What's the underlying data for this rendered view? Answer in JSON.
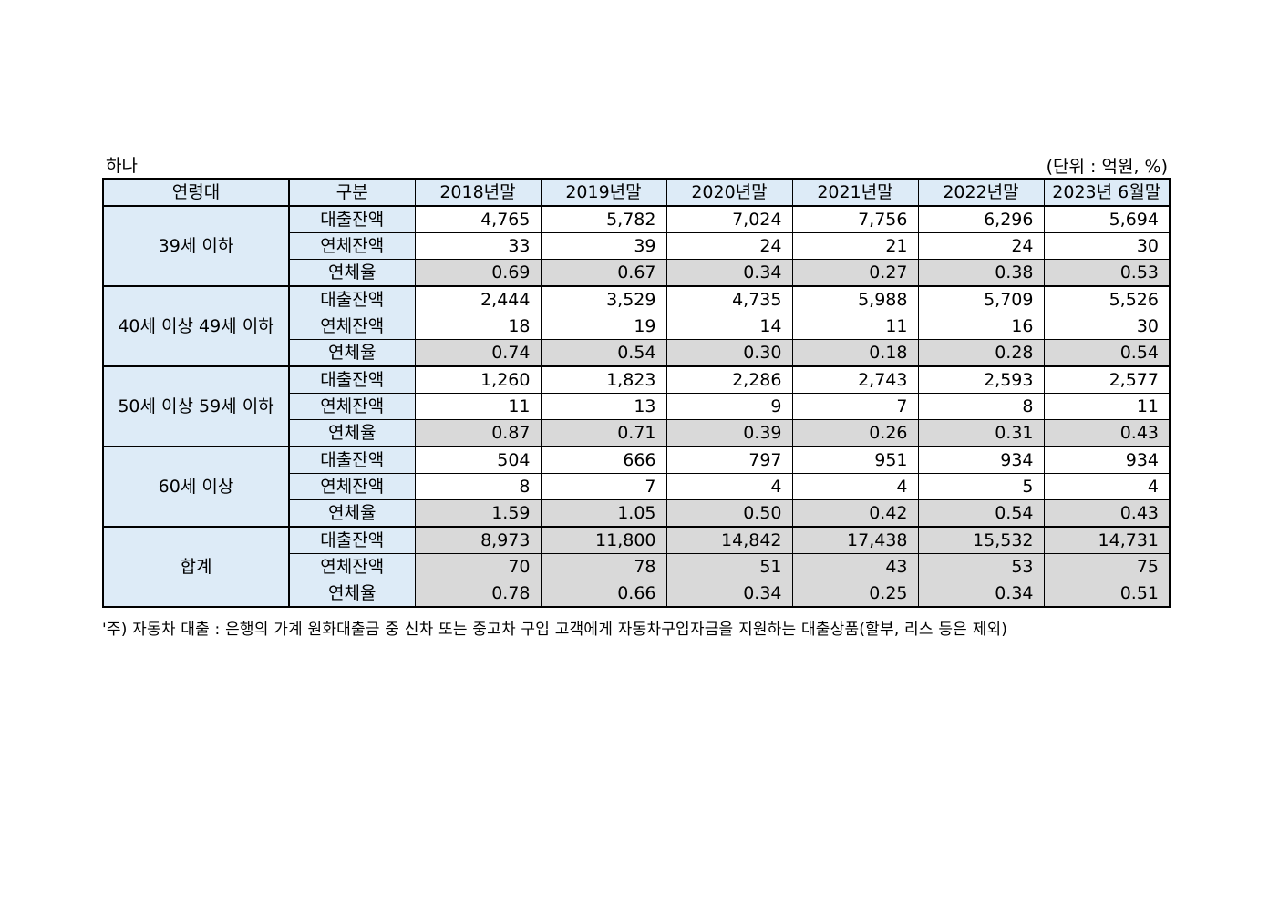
{
  "header": {
    "bank": "하나",
    "unit": "(단위 : 억원, %)"
  },
  "table": {
    "columns": [
      "연령대",
      "구분",
      "2018년말",
      "2019년말",
      "2020년말",
      "2021년말",
      "2022년말",
      "2023년 6월말"
    ],
    "groups": [
      {
        "age": "39세 이하",
        "rows": [
          {
            "cat": "대출잔액",
            "values": [
              "4,765",
              "5,782",
              "7,024",
              "7,756",
              "6,296",
              "5,694"
            ]
          },
          {
            "cat": "연체잔액",
            "values": [
              "33",
              "39",
              "24",
              "21",
              "24",
              "30"
            ]
          },
          {
            "cat": "연체율",
            "values": [
              "0.69",
              "0.67",
              "0.34",
              "0.27",
              "0.38",
              "0.53"
            ]
          }
        ]
      },
      {
        "age": "40세 이상 49세 이하",
        "rows": [
          {
            "cat": "대출잔액",
            "values": [
              "2,444",
              "3,529",
              "4,735",
              "5,988",
              "5,709",
              "5,526"
            ]
          },
          {
            "cat": "연체잔액",
            "values": [
              "18",
              "19",
              "14",
              "11",
              "16",
              "30"
            ]
          },
          {
            "cat": "연체율",
            "values": [
              "0.74",
              "0.54",
              "0.30",
              "0.18",
              "0.28",
              "0.54"
            ]
          }
        ]
      },
      {
        "age": "50세 이상 59세 이하",
        "rows": [
          {
            "cat": "대출잔액",
            "values": [
              "1,260",
              "1,823",
              "2,286",
              "2,743",
              "2,593",
              "2,577"
            ]
          },
          {
            "cat": "연체잔액",
            "values": [
              "11",
              "13",
              "9",
              "7",
              "8",
              "11"
            ]
          },
          {
            "cat": "연체율",
            "values": [
              "0.87",
              "0.71",
              "0.39",
              "0.26",
              "0.31",
              "0.43"
            ]
          }
        ]
      },
      {
        "age": "60세 이상",
        "rows": [
          {
            "cat": "대출잔액",
            "values": [
              "504",
              "666",
              "797",
              "951",
              "934",
              "934"
            ]
          },
          {
            "cat": "연체잔액",
            "values": [
              "8",
              "7",
              "4",
              "4",
              "5",
              "4"
            ]
          },
          {
            "cat": "연체율",
            "values": [
              "1.59",
              "1.05",
              "0.50",
              "0.42",
              "0.54",
              "0.43"
            ]
          }
        ]
      },
      {
        "age": "합계",
        "rows": [
          {
            "cat": "대출잔액",
            "values": [
              "8,973",
              "11,800",
              "14,842",
              "17,438",
              "15,532",
              "14,731"
            ]
          },
          {
            "cat": "연체잔액",
            "values": [
              "70",
              "78",
              "51",
              "43",
              "53",
              "75"
            ]
          },
          {
            "cat": "연체율",
            "values": [
              "0.78",
              "0.66",
              "0.34",
              "0.25",
              "0.34",
              "0.51"
            ]
          }
        ]
      }
    ]
  },
  "footnote": "'주) 자동차 대출 : 은행의 가계 원화대출금 중 신차 또는 중고차 구입 고객에게 자동차구입자금을 지원하는 대출상품(할부, 리스 등은 제외)"
}
